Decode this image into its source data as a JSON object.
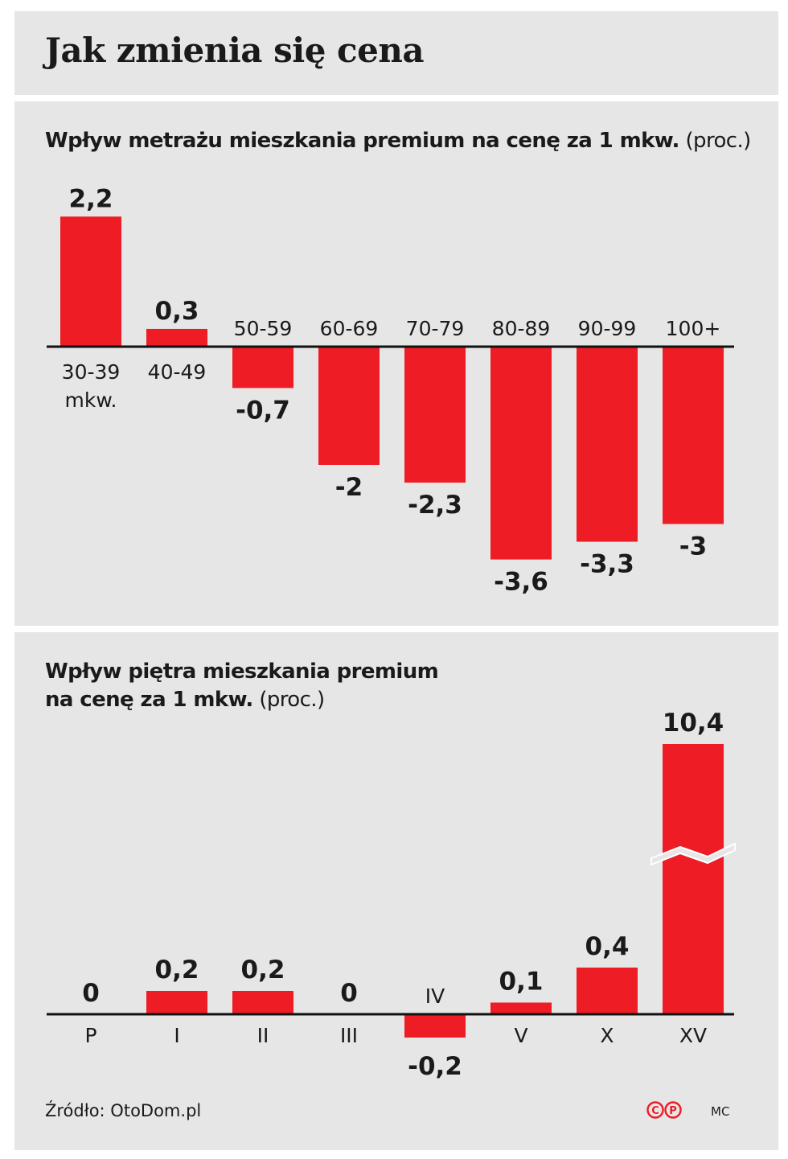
{
  "title": "Jak zmienia się cena",
  "colors": {
    "bar": "#ee1c25",
    "panel": "#e6e6e6",
    "text": "#1a1a1a"
  },
  "chart_data": [
    {
      "type": "bar",
      "title_bold": "Wpływ metrażu mieszkania premium na cenę za 1 mkw.",
      "title_unit": "(proc.)",
      "categories": [
        "30-39",
        "40-49",
        "50-59",
        "60-69",
        "70-79",
        "80-89",
        "90-99",
        "100+"
      ],
      "category_unit": "mkw.",
      "values": [
        2.2,
        0.3,
        -0.7,
        -2,
        -2.3,
        -3.6,
        -3.3,
        -3
      ],
      "value_labels": [
        "2,2",
        "0,3",
        "-0,7",
        "-2",
        "-2,3",
        "-3,6",
        "-3,3",
        "-3"
      ],
      "xlabel": "",
      "ylabel": "",
      "ylim": [
        -3.6,
        2.2
      ],
      "grid": false
    },
    {
      "type": "bar",
      "title_bold_line1": "Wpływ piętra mieszkania premium",
      "title_bold_line2": "na cenę za 1 mkw.",
      "title_unit": "(proc.)",
      "categories": [
        "P",
        "I",
        "II",
        "III",
        "IV",
        "V",
        "X",
        "XV"
      ],
      "values": [
        0,
        0.2,
        0.2,
        0,
        -0.2,
        0.1,
        0.4,
        10.4
      ],
      "value_labels": [
        "0",
        "0,2",
        "0,2",
        "0",
        "-0,2",
        "0,1",
        "0,4",
        "10,4"
      ],
      "broken_axis_category": "XV",
      "xlabel": "",
      "ylabel": "",
      "grid": false
    }
  ],
  "footer": {
    "source": "Źródło: OtoDom.pl",
    "logo_text": "©P",
    "author": "MC"
  }
}
